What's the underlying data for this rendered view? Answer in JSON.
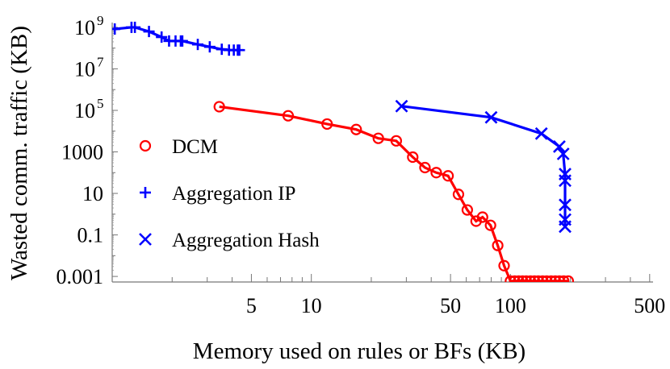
{
  "chart_data": {
    "type": "line",
    "xlabel": "Memory used on rules or BFs (KB)",
    "ylabel": "Wasted comm. traffic (KB)",
    "xscale": "log",
    "yscale": "log",
    "xlim": [
      1,
      520
    ],
    "ylim": [
      0.00054,
      1700000000.0
    ],
    "xticks": [
      {
        "v": 5,
        "label": "5"
      },
      {
        "v": 10,
        "label": "10"
      },
      {
        "v": 50,
        "label": "50"
      },
      {
        "v": 100,
        "label": "100"
      },
      {
        "v": 500,
        "label": "500"
      }
    ],
    "yticks": [
      {
        "v": 1000000000.0,
        "base": "10",
        "exp": "9"
      },
      {
        "v": 10000000.0,
        "base": "10",
        "exp": "7"
      },
      {
        "v": 100000.0,
        "base": "10",
        "exp": "5"
      },
      {
        "v": 1000,
        "base": "1000",
        "exp": ""
      },
      {
        "v": 10,
        "base": "10",
        "exp": ""
      },
      {
        "v": 0.1,
        "base": "0.1",
        "exp": ""
      },
      {
        "v": 0.001,
        "base": "0.001",
        "exp": ""
      }
    ],
    "grid": false,
    "legend_position": "left",
    "series": [
      {
        "name": "DCM",
        "marker": "circle",
        "color": "#ff0000",
        "points": [
          [
            3.45,
            150000.0
          ],
          [
            7.65,
            55000.0
          ],
          [
            12.0,
            22000.0
          ],
          [
            16.8,
            12000.0
          ],
          [
            21.7,
            4500
          ],
          [
            26.7,
            3400
          ],
          [
            32.3,
            560
          ],
          [
            37.2,
            175
          ],
          [
            42.4,
            100
          ],
          [
            48.6,
            70
          ],
          [
            54.8,
            9
          ],
          [
            60.7,
            1.6
          ],
          [
            67.2,
            0.46
          ],
          [
            72.4,
            0.72
          ],
          [
            79.4,
            0.29
          ],
          [
            86.3,
            0.031
          ],
          [
            92.9,
            0.0033
          ],
          [
            100,
            0.0006
          ],
          [
            105,
            0.0006
          ],
          [
            110,
            0.0006
          ],
          [
            115,
            0.0006
          ],
          [
            120,
            0.0006
          ],
          [
            126,
            0.0006
          ],
          [
            132,
            0.0006
          ],
          [
            138,
            0.0006
          ],
          [
            145,
            0.0006
          ],
          [
            152,
            0.0006
          ],
          [
            160,
            0.0006
          ],
          [
            168,
            0.0006
          ],
          [
            176,
            0.0006
          ],
          [
            185,
            0.0006
          ],
          [
            195,
            0.0006
          ]
        ]
      },
      {
        "name": "Aggregation IP",
        "marker": "plus",
        "color": "#0000ff",
        "points": [
          [
            1.03,
            830000000.0
          ],
          [
            1.25,
            1000000000.0
          ],
          [
            1.3,
            1000000000.0
          ],
          [
            1.53,
            630000000.0
          ],
          [
            1.77,
            340000000.0
          ],
          [
            1.93,
            220000000.0
          ],
          [
            2.08,
            220000000.0
          ],
          [
            2.21,
            220000000.0
          ],
          [
            2.25,
            220000000.0
          ],
          [
            2.69,
            150000000.0
          ],
          [
            3.09,
            115000000.0
          ],
          [
            3.55,
            88000000.0
          ],
          [
            3.86,
            80000000.0
          ],
          [
            4.08,
            80000000.0
          ],
          [
            4.27,
            80000000.0
          ],
          [
            4.35,
            80000000.0
          ]
        ]
      },
      {
        "name": "Aggregation Hash",
        "marker": "cross",
        "color": "#0000ff",
        "points": [
          [
            28.4,
            160000.0
          ],
          [
            80,
            46000.0
          ],
          [
            143,
            7600
          ],
          [
            176,
            1800
          ],
          [
            184,
            800
          ],
          [
            188,
            85
          ],
          [
            188,
            41
          ],
          [
            188,
            2.8
          ],
          [
            188,
            0.55
          ],
          [
            188,
            0.25
          ]
        ]
      }
    ]
  }
}
